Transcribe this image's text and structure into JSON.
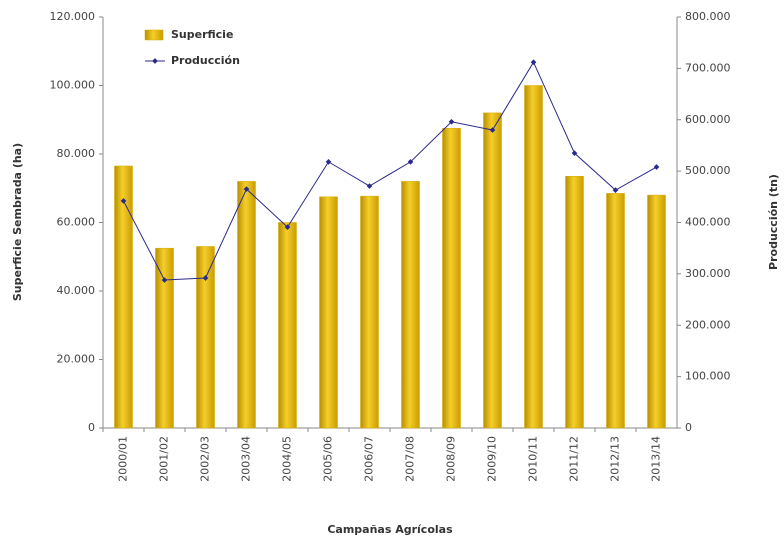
{
  "chart_data": {
    "type": "bar",
    "categories": [
      "2000/01",
      "2001/02",
      "2002/03",
      "2003/04",
      "2004/05",
      "2005/06",
      "2006/07",
      "2007/08",
      "2008/09",
      "2009/10",
      "2010/11",
      "2011/12",
      "2012/13",
      "2013/14"
    ],
    "series": [
      {
        "name": "Superficie",
        "type": "bar",
        "color": "#d9aa00",
        "values": [
          76500,
          52500,
          53000,
          72000,
          60000,
          67500,
          67700,
          72000,
          87500,
          92000,
          100000,
          73500,
          68500,
          68000
        ]
      },
      {
        "name": "Producción",
        "type": "line",
        "axis": "y2",
        "color": "#2a2a8c",
        "values": [
          442000,
          288000,
          292000,
          465000,
          391000,
          518000,
          471000,
          518000,
          596000,
          580000,
          712000,
          535000,
          463000,
          508000
        ]
      }
    ],
    "ylabel": "Superficie Sembrada (ha)",
    "y2label": "Producción (tn)",
    "xlabel": "Campañas Agrícolas",
    "ylim": [
      0,
      120000
    ],
    "yticks": [
      0,
      {
        "value": 20000,
        "label": "20.000"
      },
      {
        "value": 40000,
        "label": "40.000"
      },
      {
        "value": 60000,
        "label": "60.000"
      },
      {
        "value": 80000,
        "label": "80.000"
      },
      {
        "value": 100000,
        "label": "100.000"
      },
      {
        "value": 120000,
        "label": "120.000"
      }
    ],
    "y2lim": [
      0,
      800000
    ],
    "y2ticks": [
      0,
      {
        "value": 100000,
        "label": "100.000"
      },
      {
        "value": 200000,
        "label": "200.000"
      },
      {
        "value": 300000,
        "label": "300.000"
      },
      {
        "value": 400000,
        "label": "400.000"
      },
      {
        "value": 500000,
        "label": "500.000"
      },
      {
        "value": 600000,
        "label": "600.000"
      },
      {
        "value": 700000,
        "label": "700.000"
      },
      {
        "value": 800000,
        "label": "800.000"
      }
    ],
    "legend": "upper left"
  }
}
